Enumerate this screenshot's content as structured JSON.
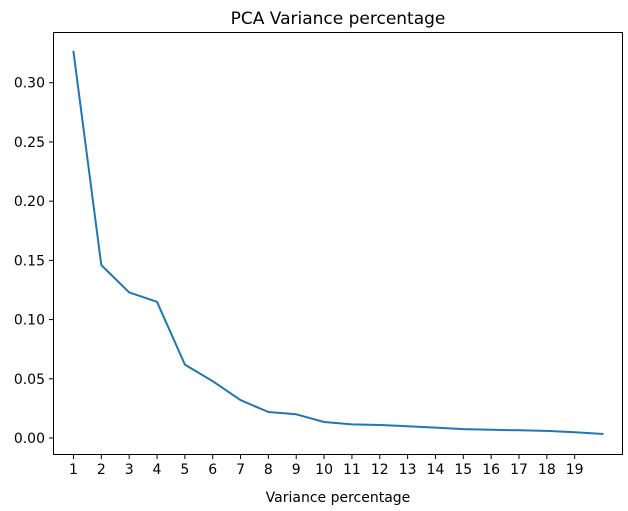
{
  "chart_data": {
    "type": "line",
    "title": "PCA Variance percentage",
    "xlabel": "Variance percentage",
    "ylabel": "",
    "xlim": [
      0.3,
      20.7
    ],
    "ylim": [
      -0.0135,
      0.342
    ],
    "grid": false,
    "x_ticks": [
      1,
      2,
      3,
      4,
      5,
      6,
      7,
      8,
      9,
      10,
      11,
      12,
      13,
      14,
      15,
      16,
      17,
      18,
      19
    ],
    "x_tick_labels": [
      "1",
      "2",
      "3",
      "4",
      "5",
      "6",
      "7",
      "8",
      "9",
      "10",
      "11",
      "12",
      "13",
      "14",
      "15",
      "16",
      "17",
      "18",
      "19"
    ],
    "y_ticks": [
      0.0,
      0.05,
      0.1,
      0.15,
      0.2,
      0.25,
      0.3
    ],
    "y_tick_labels": [
      "0.00",
      "0.05",
      "0.10",
      "0.15",
      "0.20",
      "0.25",
      "0.30"
    ],
    "series": [
      {
        "color": "#1f77b4",
        "x": [
          1,
          2,
          3,
          4,
          5,
          6,
          7,
          8,
          9,
          10,
          11,
          12,
          13,
          14,
          15,
          16,
          17,
          18,
          19,
          20
        ],
        "y": [
          0.326,
          0.146,
          0.123,
          0.115,
          0.062,
          0.048,
          0.032,
          0.022,
          0.02,
          0.0135,
          0.0115,
          0.011,
          0.01,
          0.0088,
          0.0075,
          0.007,
          0.0065,
          0.006,
          0.0048,
          0.0035
        ]
      }
    ]
  }
}
